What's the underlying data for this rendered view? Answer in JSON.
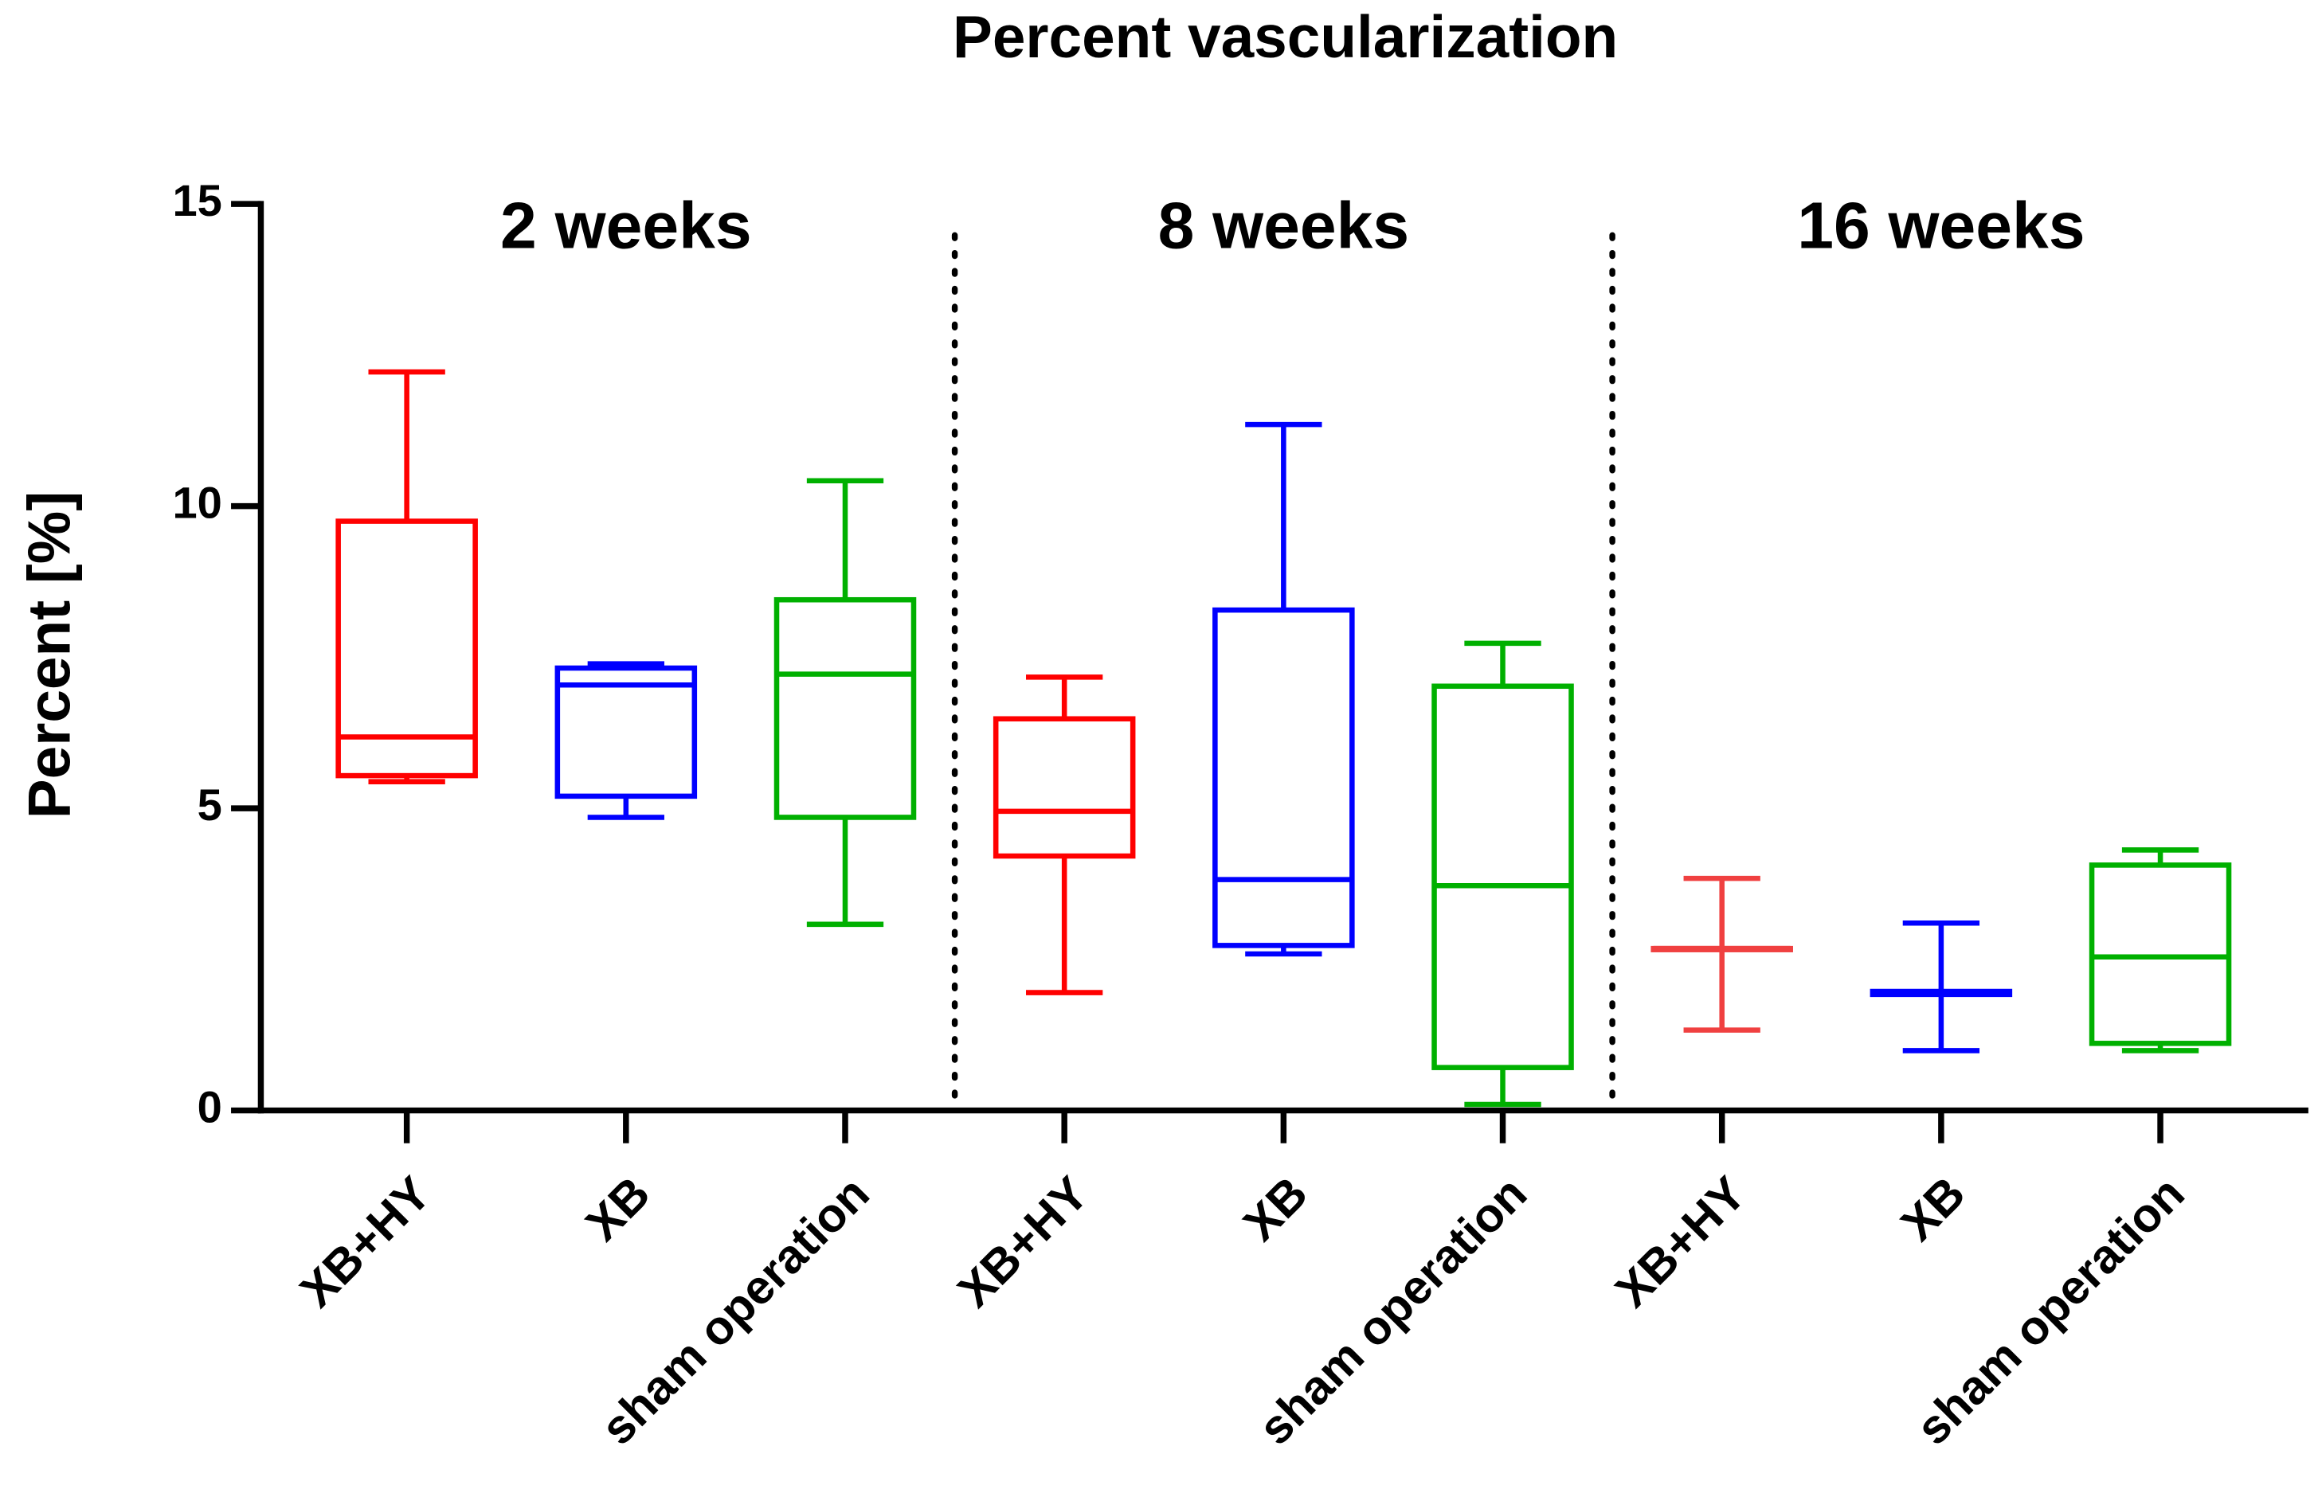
{
  "chart_data": {
    "type": "box",
    "title": "Percent vascularization",
    "y_label": "Percent [%]",
    "groups": [
      "2 weeks",
      "8 weeks",
      "16 weeks"
    ],
    "categories": [
      "XB+HY",
      "XB",
      "sham operation",
      "XB+HY",
      "XB",
      "sham operation",
      "XB+HY",
      "XB",
      "sham operation"
    ],
    "boxes": [
      {
        "color": "#ff0000",
        "min": 5.44,
        "q1": 5.54,
        "median": 6.18,
        "q3": 9.75,
        "max": 12.22
      },
      {
        "color": "#0000ff",
        "min": 4.85,
        "q1": 5.2,
        "median": 7.04,
        "q3": 7.32,
        "max": 7.39
      },
      {
        "color": "#00b000",
        "min": 3.08,
        "q1": 4.85,
        "median": 7.22,
        "q3": 8.45,
        "max": 10.42
      },
      {
        "color": "#ff0000",
        "min": 1.95,
        "q1": 4.21,
        "median": 4.95,
        "q3": 6.48,
        "max": 7.17
      },
      {
        "color": "#0000ff",
        "min": 2.59,
        "q1": 2.73,
        "median": 3.82,
        "q3": 8.28,
        "max": 11.35
      },
      {
        "color": "#00b000",
        "min": 0.1,
        "q1": 0.71,
        "median": 3.72,
        "q3": 7.02,
        "max": 7.73
      },
      {
        "color": "#f04040",
        "min": 1.33,
        "q1": 2.66,
        "median": 2.68,
        "q3": 2.68,
        "max": 3.84
      },
      {
        "color": "#0000ff",
        "min": 0.99,
        "q1": 1.92,
        "median": 1.95,
        "q3": 1.97,
        "max": 3.1
      },
      {
        "color": "#00b000",
        "min": 0.99,
        "q1": 1.11,
        "median": 2.54,
        "q3": 4.06,
        "max": 4.31
      }
    ],
    "ylim": [
      0,
      15
    ],
    "yticks": [
      0,
      5,
      10,
      15
    ]
  }
}
